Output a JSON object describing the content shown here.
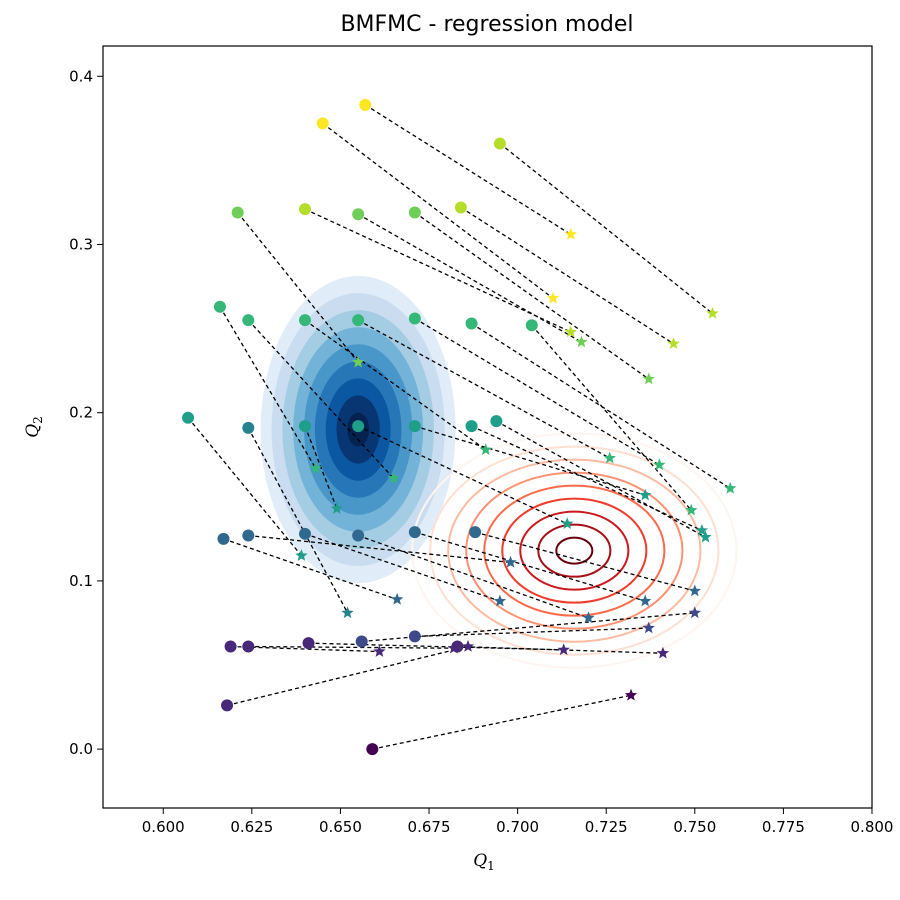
{
  "chart_data": {
    "type": "scatter",
    "title": "BMFMC - regression model",
    "xlabel": {
      "main": "Q",
      "sub": "1"
    },
    "ylabel": {
      "main": "Q",
      "sub": "2"
    },
    "xlim": [
      0.583,
      0.8
    ],
    "ylim": [
      -0.035,
      0.418
    ],
    "xticks": [
      "0.600",
      "0.625",
      "0.650",
      "0.675",
      "0.700",
      "0.725",
      "0.750",
      "0.775",
      "0.800"
    ],
    "yticks": [
      "0.0",
      "0.1",
      "0.2",
      "0.3",
      "0.4"
    ],
    "grid": false,
    "colors": {
      "link_line": "#000000",
      "density_blue": "#08519c",
      "density_red": "#67000d"
    },
    "marker_types": {
      "low_fidelity": "circle",
      "high_fidelity": "star",
      "colormap": "viridis"
    },
    "blue_density": {
      "center": [
        0.655,
        0.19
      ],
      "sx": 0.0125,
      "sy": 0.073,
      "levels": 9
    },
    "red_density": {
      "center": [
        0.716,
        0.118
      ],
      "sx": 0.0305,
      "sy": 0.058,
      "levels": 9
    },
    "pairs": [
      {
        "lf": [
          0.657,
          0.383
        ],
        "hf": [
          0.715,
          0.306
        ],
        "c": 0.383
      },
      {
        "lf": [
          0.695,
          0.36
        ],
        "hf": [
          0.755,
          0.259
        ],
        "c": 0.36
      },
      {
        "lf": [
          0.645,
          0.372
        ],
        "hf": [
          0.71,
          0.268
        ],
        "c": 0.372
      },
      {
        "lf": [
          0.684,
          0.322
        ],
        "hf": [
          0.744,
          0.241
        ],
        "c": 0.322
      },
      {
        "lf": [
          0.64,
          0.321
        ],
        "hf": [
          0.715,
          0.248
        ],
        "c": 0.321
      },
      {
        "lf": [
          0.671,
          0.319
        ],
        "hf": [
          0.737,
          0.22
        ],
        "c": 0.319
      },
      {
        "lf": [
          0.655,
          0.318
        ],
        "hf": [
          0.718,
          0.242
        ],
        "c": 0.318
      },
      {
        "lf": [
          0.621,
          0.319
        ],
        "hf": [
          0.655,
          0.23
        ],
        "c": 0.319
      },
      {
        "lf": [
          0.616,
          0.263
        ],
        "hf": [
          0.643,
          0.167
        ],
        "c": 0.263
      },
      {
        "lf": [
          0.624,
          0.255
        ],
        "hf": [
          0.665,
          0.161
        ],
        "c": 0.255
      },
      {
        "lf": [
          0.64,
          0.255
        ],
        "hf": [
          0.691,
          0.178
        ],
        "c": 0.255
      },
      {
        "lf": [
          0.655,
          0.255
        ],
        "hf": [
          0.726,
          0.173
        ],
        "c": 0.255
      },
      {
        "lf": [
          0.671,
          0.256
        ],
        "hf": [
          0.74,
          0.169
        ],
        "c": 0.256
      },
      {
        "lf": [
          0.687,
          0.253
        ],
        "hf": [
          0.76,
          0.155
        ],
        "c": 0.253
      },
      {
        "lf": [
          0.704,
          0.252
        ],
        "hf": [
          0.749,
          0.142
        ],
        "c": 0.252
      },
      {
        "lf": [
          0.607,
          0.197
        ],
        "hf": [
          0.639,
          0.115
        ],
        "c": 0.197
      },
      {
        "lf": [
          0.624,
          0.191
        ],
        "hf": [
          0.652,
          0.081
        ],
        "c": 0.191
      },
      {
        "lf": [
          0.64,
          0.192
        ],
        "hf": [
          0.649,
          0.143
        ],
        "c": 0.192
      },
      {
        "lf": [
          0.655,
          0.192
        ],
        "hf": [
          0.714,
          0.134
        ],
        "c": 0.192
      },
      {
        "lf": [
          0.671,
          0.192
        ],
        "hf": [
          0.736,
          0.151
        ],
        "c": 0.192
      },
      {
        "lf": [
          0.687,
          0.192
        ],
        "hf": [
          0.752,
          0.13
        ],
        "c": 0.192
      },
      {
        "lf": [
          0.694,
          0.195
        ],
        "hf": [
          0.753,
          0.126
        ],
        "c": 0.195
      },
      {
        "lf": [
          0.617,
          0.125
        ],
        "hf": [
          0.666,
          0.089
        ],
        "c": 0.125
      },
      {
        "lf": [
          0.624,
          0.127
        ],
        "hf": [
          0.698,
          0.111
        ],
        "c": 0.127
      },
      {
        "lf": [
          0.64,
          0.128
        ],
        "hf": [
          0.695,
          0.088
        ],
        "c": 0.128
      },
      {
        "lf": [
          0.655,
          0.127
        ],
        "hf": [
          0.72,
          0.078
        ],
        "c": 0.127
      },
      {
        "lf": [
          0.671,
          0.129
        ],
        "hf": [
          0.736,
          0.088
        ],
        "c": 0.129
      },
      {
        "lf": [
          0.688,
          0.129
        ],
        "hf": [
          0.75,
          0.094
        ],
        "c": 0.129
      },
      {
        "lf": [
          0.619,
          0.061
        ],
        "hf": [
          0.661,
          0.058
        ],
        "c": 0.061
      },
      {
        "lf": [
          0.624,
          0.061
        ],
        "hf": [
          0.682,
          0.06
        ],
        "c": 0.061
      },
      {
        "lf": [
          0.641,
          0.063
        ],
        "hf": [
          0.713,
          0.059
        ],
        "c": 0.063
      },
      {
        "lf": [
          0.656,
          0.064
        ],
        "hf": [
          0.75,
          0.081
        ],
        "c": 0.064
      },
      {
        "lf": [
          0.671,
          0.067
        ],
        "hf": [
          0.737,
          0.072
        ],
        "c": 0.067
      },
      {
        "lf": [
          0.683,
          0.061
        ],
        "hf": [
          0.741,
          0.057
        ],
        "c": 0.061
      },
      {
        "lf": [
          0.618,
          0.026
        ],
        "hf": [
          0.686,
          0.061
        ],
        "c": 0.026
      },
      {
        "lf": [
          0.659,
          0.0
        ],
        "hf": [
          0.732,
          0.032
        ],
        "c": 0.0
      }
    ]
  }
}
